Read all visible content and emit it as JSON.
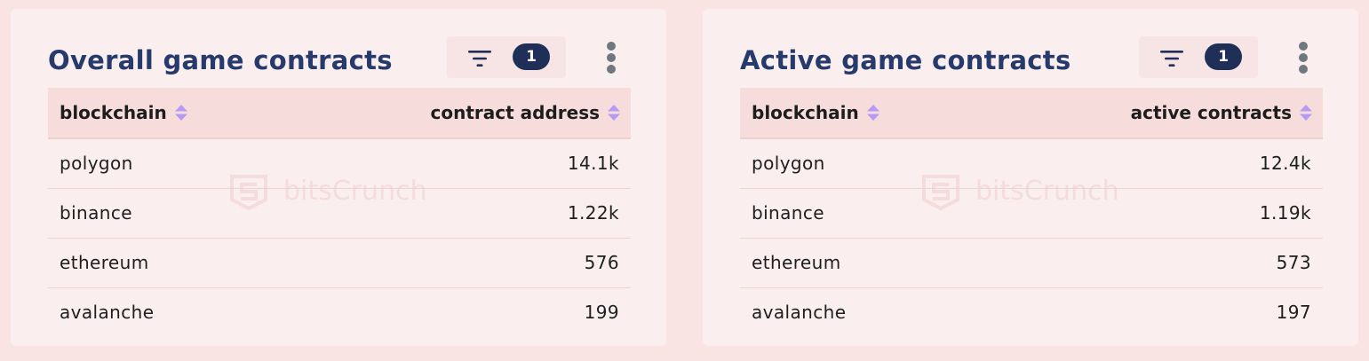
{
  "colors": {
    "page_background": "#f9e3e3",
    "card_background": "#fbeeee",
    "title": "#263a6b",
    "badge": "#1f2f58",
    "filter_icon": "#1f2f58",
    "sort_icon": "#b79af4",
    "watermark": "#f0cfcf"
  },
  "watermark": {
    "logo_icon": "bitscrunch-logo-icon",
    "text": "bitsCrunch"
  },
  "cards": [
    {
      "title": "Overall game contracts",
      "filter_icon": "filter-icon",
      "filter_count": "1",
      "more_icon": "more-vertical-icon",
      "columns": [
        {
          "label": "blockchain",
          "sort_icon": "sort-icon"
        },
        {
          "label": "contract address",
          "sort_icon": "sort-icon"
        }
      ],
      "rows": [
        {
          "blockchain": "polygon",
          "value": "14.1k"
        },
        {
          "blockchain": "binance",
          "value": "1.22k"
        },
        {
          "blockchain": "ethereum",
          "value": "576"
        },
        {
          "blockchain": "avalanche",
          "value": "199"
        }
      ]
    },
    {
      "title": "Active game contracts",
      "filter_icon": "filter-icon",
      "filter_count": "1",
      "more_icon": "more-vertical-icon",
      "columns": [
        {
          "label": "blockchain",
          "sort_icon": "sort-icon"
        },
        {
          "label": "active contracts",
          "sort_icon": "sort-icon"
        }
      ],
      "rows": [
        {
          "blockchain": "polygon",
          "value": "12.4k"
        },
        {
          "blockchain": "binance",
          "value": "1.19k"
        },
        {
          "blockchain": "ethereum",
          "value": "573"
        },
        {
          "blockchain": "avalanche",
          "value": "197"
        }
      ]
    }
  ]
}
